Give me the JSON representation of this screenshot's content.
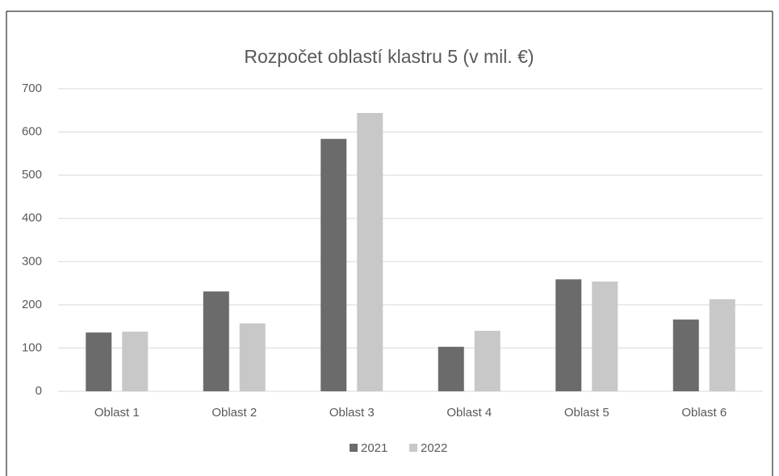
{
  "chart_data": {
    "type": "bar",
    "title": "Rozpočet oblastí klastru 5 (v mil. €)",
    "categories": [
      "Oblast 1",
      "Oblast 2",
      "Oblast 3",
      "Oblast 4",
      "Oblast 5",
      "Oblast 6"
    ],
    "series": [
      {
        "name": "2021",
        "color": "#6b6b6b",
        "values": [
          136,
          231,
          584,
          103,
          259,
          166
        ]
      },
      {
        "name": "2022",
        "color": "#c8c8c8",
        "values": [
          138,
          157,
          644,
          140,
          254,
          213
        ]
      }
    ],
    "ylim": [
      0,
      700
    ],
    "yticks": [
      0,
      100,
      200,
      300,
      400,
      500,
      600,
      700
    ],
    "grid": true,
    "legend": "bottom"
  }
}
